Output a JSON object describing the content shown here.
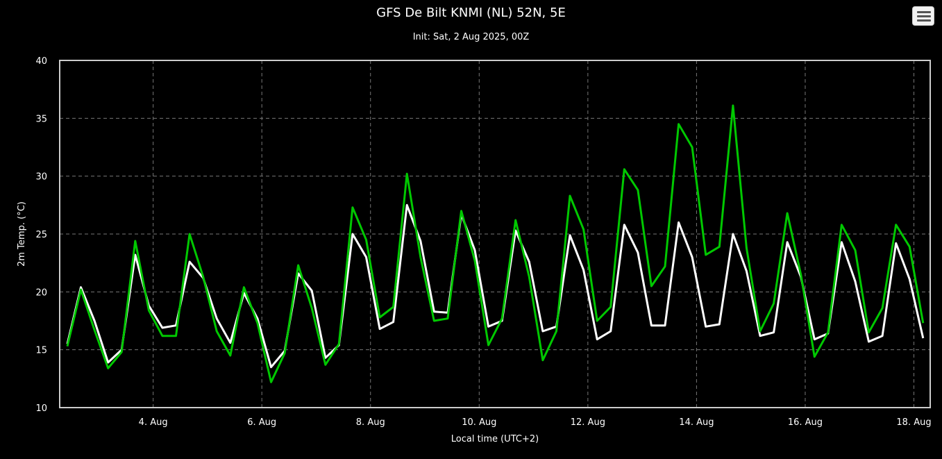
{
  "menu": {
    "icon": "hamburger-menu-icon"
  },
  "chart_data": {
    "type": "line",
    "title": "GFS De Bilt KNMI (NL) 52N, 5E",
    "subtitle": "Init: Sat, 2 Aug 2025, 00Z",
    "xlabel": "Local time (UTC+2)",
    "ylabel": "2m Temp. (°C)",
    "ylim": [
      10,
      40
    ],
    "yticks": [
      "10",
      "15",
      "20",
      "25",
      "30",
      "35",
      "40"
    ],
    "xlim_days": [
      2.28,
      18.3
    ],
    "xticks": [
      {
        "day": 4,
        "label": "4. Aug"
      },
      {
        "day": 6,
        "label": "6. Aug"
      },
      {
        "day": 8,
        "label": "8. Aug"
      },
      {
        "day": 10,
        "label": "10. Aug"
      },
      {
        "day": 12,
        "label": "12. Aug"
      },
      {
        "day": 14,
        "label": "14. Aug"
      },
      {
        "day": 16,
        "label": "16. Aug"
      },
      {
        "day": 18,
        "label": "18. Aug"
      }
    ],
    "grid": true,
    "background": "#000000",
    "series": [
      {
        "color": "#ffffff",
        "x": [
          2.42,
          2.67,
          2.92,
          3.17,
          3.42,
          3.67,
          3.92,
          4.17,
          4.42,
          4.67,
          4.92,
          5.17,
          5.42,
          5.67,
          5.92,
          6.17,
          6.42,
          6.67,
          6.92,
          7.17,
          7.42,
          7.67,
          7.92,
          8.17,
          8.42,
          8.67,
          8.92,
          9.17,
          9.42,
          9.67,
          9.92,
          10.17,
          10.42,
          10.67,
          10.92,
          11.17,
          11.42,
          11.67,
          11.92,
          12.17,
          12.42,
          12.67,
          12.92,
          13.17,
          13.42,
          13.67,
          13.92,
          14.17,
          14.42,
          14.67,
          14.92,
          15.17,
          15.42,
          15.67,
          15.92,
          16.17,
          16.42,
          16.67,
          16.92,
          17.17,
          17.42,
          17.67,
          17.92,
          18.17
        ],
        "values": [
          15.5,
          20.4,
          17.5,
          13.9,
          15.0,
          23.2,
          18.8,
          16.9,
          17.1,
          22.6,
          21.2,
          17.7,
          15.6,
          19.9,
          17.7,
          13.5,
          14.9,
          21.6,
          20.1,
          14.3,
          15.4,
          25.0,
          23.0,
          16.8,
          17.4,
          27.5,
          24.4,
          18.3,
          18.2,
          26.7,
          23.6,
          17.0,
          17.5,
          25.3,
          22.6,
          16.6,
          17.0,
          24.9,
          21.9,
          15.9,
          16.6,
          25.8,
          23.4,
          17.1,
          17.1,
          26.0,
          23.0,
          17.0,
          17.2,
          25.0,
          21.8,
          16.2,
          16.5,
          24.3,
          21.3,
          15.9,
          16.4,
          24.3,
          20.9,
          15.7,
          16.2,
          24.2,
          21.1,
          16.0
        ]
      },
      {
        "color": "#00c800",
        "x": [
          2.42,
          2.67,
          2.92,
          3.17,
          3.42,
          3.67,
          3.92,
          4.17,
          4.42,
          4.67,
          4.92,
          5.17,
          5.42,
          5.67,
          5.92,
          6.17,
          6.42,
          6.67,
          6.92,
          7.17,
          7.42,
          7.67,
          7.92,
          8.17,
          8.42,
          8.67,
          8.92,
          9.17,
          9.42,
          9.67,
          9.92,
          10.17,
          10.42,
          10.67,
          10.92,
          11.17,
          11.42,
          11.67,
          11.92,
          12.17,
          12.42,
          12.67,
          12.92,
          13.17,
          13.42,
          13.67,
          13.92,
          14.17,
          14.42,
          14.67,
          14.92,
          15.17,
          15.42,
          15.67,
          15.92,
          16.17,
          16.42,
          16.67,
          16.92,
          17.17,
          17.42,
          17.67,
          17.92,
          18.17
        ],
        "values": [
          15.3,
          20.2,
          16.7,
          13.4,
          14.8,
          24.4,
          18.4,
          16.2,
          16.2,
          25.0,
          21.3,
          16.6,
          14.5,
          20.4,
          17.3,
          12.2,
          14.7,
          22.3,
          18.6,
          13.7,
          15.5,
          27.3,
          24.5,
          17.8,
          18.7,
          30.2,
          23.0,
          17.5,
          17.7,
          27.0,
          22.7,
          15.4,
          17.7,
          26.2,
          21.3,
          14.1,
          16.6,
          28.3,
          25.4,
          17.5,
          18.7,
          30.6,
          28.8,
          20.5,
          22.2,
          34.5,
          32.5,
          23.2,
          23.9,
          36.1,
          23.8,
          16.6,
          19.0,
          26.8,
          21.5,
          14.4,
          16.5,
          25.8,
          23.6,
          16.5,
          18.6,
          25.8,
          23.9,
          17.3
        ]
      }
    ]
  }
}
